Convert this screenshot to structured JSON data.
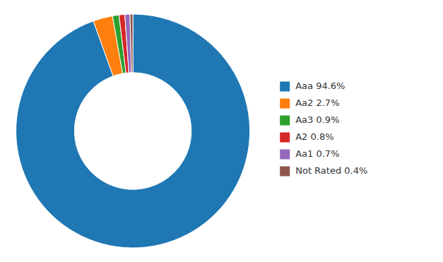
{
  "chart_data": {
    "type": "donut",
    "categories": [
      "Aaa 94.6%",
      "Aa2 2.7%",
      "Aa3 0.9%",
      "A2 0.8%",
      "Aa1 0.7%",
      "Not Rated 0.4%"
    ],
    "values": [
      94.6,
      2.7,
      0.9,
      0.8,
      0.7,
      0.4
    ],
    "legend": "right"
  }
}
